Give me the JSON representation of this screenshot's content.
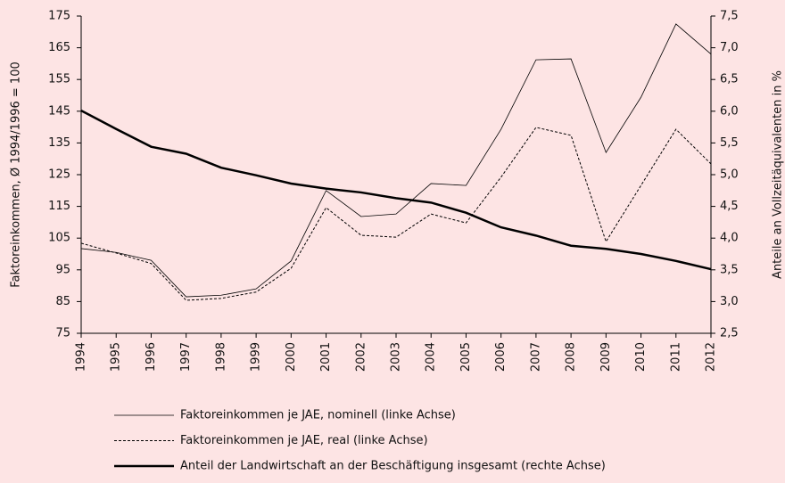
{
  "chart_data": {
    "type": "line",
    "ylabel": "Faktoreinkommen, Ø 1994/1996 = 100",
    "y2label": "Anteile an Vollzeitäquivalenten in %",
    "x": [
      "1994",
      "1995",
      "1996",
      "1997",
      "1998",
      "1999",
      "2000",
      "2001",
      "2002",
      "2003",
      "2004",
      "2005",
      "2006",
      "2007",
      "2008",
      "2009",
      "2010",
      "2011",
      "2012"
    ],
    "ylim": [
      75,
      175
    ],
    "yticks": [
      75,
      85,
      95,
      105,
      115,
      125,
      135,
      145,
      155,
      165,
      175
    ],
    "y2lim": [
      2.5,
      7.5
    ],
    "y2ticks": [
      {
        "value": 2.5,
        "label": "2,5"
      },
      {
        "value": 3,
        "label": "3,0"
      },
      {
        "value": 3.5,
        "label": "3,5"
      },
      {
        "value": 4,
        "label": "4,0"
      },
      {
        "value": 4.5,
        "label": "4,5"
      },
      {
        "value": 5,
        "label": "5,0"
      },
      {
        "value": 5.5,
        "label": "5,5"
      },
      {
        "value": 6,
        "label": "6,0"
      },
      {
        "value": 6.5,
        "label": "6,5"
      },
      {
        "value": 7,
        "label": "7,0"
      },
      {
        "value": 7.5,
        "label": "7,5"
      }
    ],
    "series": [
      {
        "name": "Faktoreinkommen je JAE, nominell (linke Achse)",
        "color": "#000000",
        "style": "solid",
        "width": 0.8,
        "values": [
          101.7,
          100.5,
          98,
          86.5,
          87,
          89,
          97.8,
          120,
          111.8,
          112.6,
          122.2,
          121.6,
          139.3,
          161.2,
          161.5,
          132,
          149.4,
          172.5,
          163
        ]
      },
      {
        "name": "Faktoreinkommen je JAE, real (linke Achse)",
        "color": "#000000",
        "style": "dashed",
        "width": 1,
        "values": [
          103.4,
          100.3,
          97,
          85.4,
          86,
          88,
          95.5,
          114.6,
          105.9,
          105.3,
          112.6,
          109.8,
          124.2,
          139.9,
          137.4,
          103.9,
          121.6,
          139.3,
          128.4
        ]
      },
      {
        "name": "Anteil der Landwirtschaft an der Beschäftigung insgesamt (rechte Achse)",
        "color": "#000000",
        "style": "solid",
        "width": 2.5,
        "axis": "y2",
        "values": [
          6.01,
          5.72,
          5.44,
          5.33,
          5.11,
          4.99,
          4.86,
          4.78,
          4.72,
          4.63,
          4.56,
          4.4,
          4.17,
          4.04,
          3.88,
          3.83,
          3.75,
          3.64,
          3.51
        ]
      }
    ]
  }
}
